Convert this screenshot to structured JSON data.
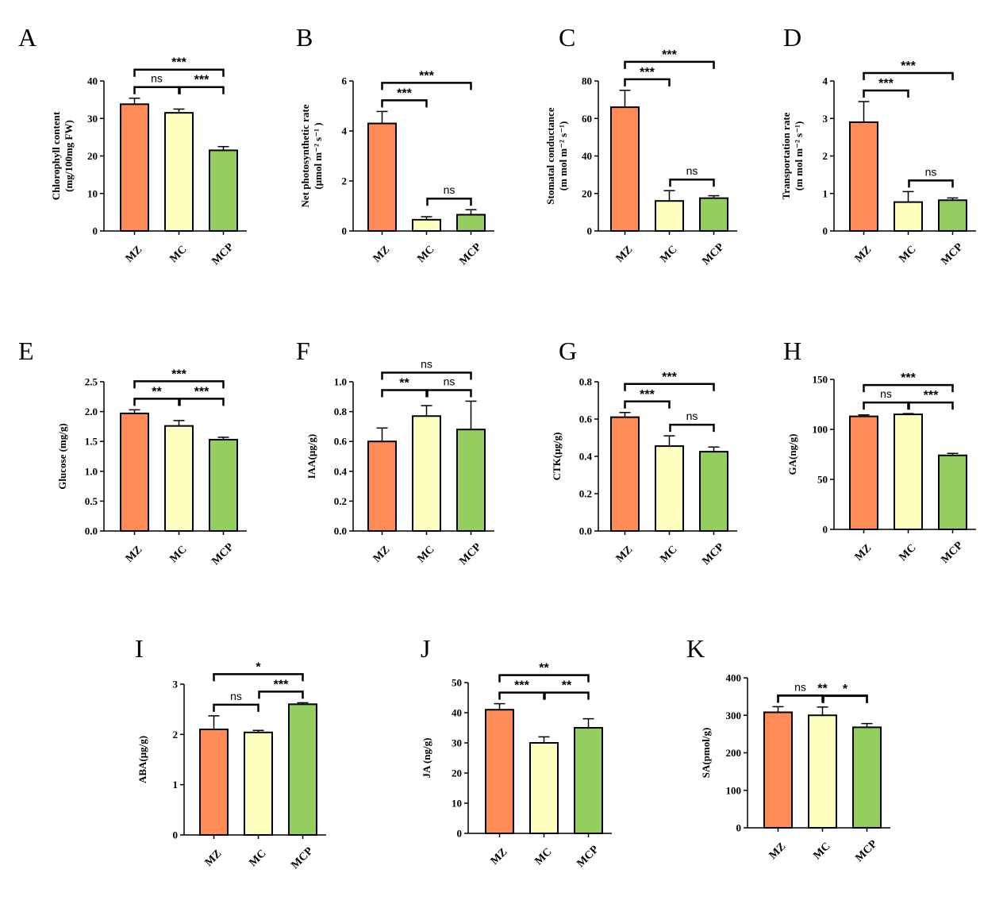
{
  "chart_data": [
    {
      "panel": "A",
      "type": "bar",
      "ylabel_lines": [
        "Chlorophyll content",
        "(mg/100mg  FW)"
      ],
      "categories": [
        "MZ",
        "MC",
        "MCP"
      ],
      "values": [
        33.8,
        31.5,
        21.5
      ],
      "errors": [
        1.6,
        1.0,
        1.0
      ],
      "ylim": [
        0,
        40
      ],
      "yticks": [
        0,
        10,
        20,
        30,
        40
      ],
      "comparisons": [
        {
          "from": 0,
          "to": 1,
          "label": "ns",
          "level": 1
        },
        {
          "from": 1,
          "to": 2,
          "label": "***",
          "level": 1
        },
        {
          "from": 0,
          "to": 2,
          "label": "***",
          "level": 2
        }
      ]
    },
    {
      "panel": "B",
      "type": "bar",
      "ylabel_lines": [
        "Net photosynthetic rate",
        "(μmol m⁻² s⁻¹ )"
      ],
      "categories": [
        "MZ",
        "MC",
        "MCP"
      ],
      "values": [
        4.3,
        0.45,
        0.65
      ],
      "errors": [
        0.48,
        0.12,
        0.2
      ],
      "ylim": [
        0,
        6
      ],
      "yticks": [
        0,
        2,
        4,
        6
      ],
      "comparisons": [
        {
          "from": 1,
          "to": 2,
          "label": "ns",
          "level": 0
        },
        {
          "from": 0,
          "to": 1,
          "label": "***",
          "level": 1
        },
        {
          "from": 0,
          "to": 2,
          "label": "***",
          "level": 2
        }
      ]
    },
    {
      "panel": "C",
      "type": "bar",
      "ylabel_lines": [
        "Stomatal conductance",
        "(m mol m⁻² s⁻¹)"
      ],
      "categories": [
        "MZ",
        "MC",
        "MCP"
      ],
      "values": [
        66,
        16,
        17.5
      ],
      "errors": [
        9,
        5.5,
        1.3
      ],
      "ylim": [
        0,
        80
      ],
      "yticks": [
        0,
        20,
        40,
        60,
        80
      ],
      "comparisons": [
        {
          "from": 1,
          "to": 2,
          "label": "ns",
          "level": 0
        },
        {
          "from": 0,
          "to": 1,
          "label": "***",
          "level": 1
        },
        {
          "from": 0,
          "to": 2,
          "label": "***",
          "level": 2
        }
      ]
    },
    {
      "panel": "D",
      "type": "bar",
      "ylabel_lines": [
        "Transportation rate",
        "(m mol m⁻² s⁻¹)"
      ],
      "categories": [
        "MZ",
        "MC",
        "MCP"
      ],
      "values": [
        2.9,
        0.77,
        0.82
      ],
      "errors": [
        0.55,
        0.28,
        0.06
      ],
      "ylim": [
        0,
        4
      ],
      "yticks": [
        0,
        1,
        2,
        3,
        4
      ],
      "comparisons": [
        {
          "from": 1,
          "to": 2,
          "label": "ns",
          "level": 0
        },
        {
          "from": 0,
          "to": 1,
          "label": "***",
          "level": 1
        },
        {
          "from": 0,
          "to": 2,
          "label": "***",
          "level": 2
        }
      ]
    },
    {
      "panel": "E",
      "type": "bar",
      "ylabel_lines": [
        "Glucose (mg/g)"
      ],
      "categories": [
        "MZ",
        "MC",
        "MCP"
      ],
      "values": [
        1.97,
        1.76,
        1.53
      ],
      "errors": [
        0.06,
        0.09,
        0.04
      ],
      "ylim": [
        0,
        2.5
      ],
      "yticks": [
        0.0,
        0.5,
        1.0,
        1.5,
        2.0,
        2.5
      ],
      "ytick_decimals": 1,
      "comparisons": [
        {
          "from": 0,
          "to": 1,
          "label": "**",
          "level": 1
        },
        {
          "from": 1,
          "to": 2,
          "label": "***",
          "level": 1
        },
        {
          "from": 0,
          "to": 2,
          "label": "***",
          "level": 2
        }
      ]
    },
    {
      "panel": "F",
      "type": "bar",
      "ylabel_lines": [
        "IAA(μg/g)"
      ],
      "categories": [
        "MZ",
        "MC",
        "MCP"
      ],
      "values": [
        0.6,
        0.77,
        0.68
      ],
      "errors": [
        0.09,
        0.07,
        0.19
      ],
      "ylim": [
        0,
        1.0
      ],
      "yticks": [
        0.0,
        0.2,
        0.4,
        0.6,
        0.8,
        1.0
      ],
      "ytick_decimals": 1,
      "comparisons": [
        {
          "from": 0,
          "to": 1,
          "label": "**",
          "level": 1
        },
        {
          "from": 1,
          "to": 2,
          "label": "ns",
          "level": 1
        },
        {
          "from": 0,
          "to": 2,
          "label": "ns",
          "level": 2
        }
      ]
    },
    {
      "panel": "G",
      "type": "bar",
      "ylabel_lines": [
        "CTK(μg/g)"
      ],
      "categories": [
        "MZ",
        "MC",
        "MCP"
      ],
      "values": [
        0.61,
        0.455,
        0.425
      ],
      "errors": [
        0.025,
        0.055,
        0.025
      ],
      "ylim": [
        0,
        0.8
      ],
      "yticks": [
        0.0,
        0.2,
        0.4,
        0.6,
        0.8
      ],
      "ytick_decimals": 1,
      "comparisons": [
        {
          "from": 1,
          "to": 2,
          "label": "ns",
          "level": 0
        },
        {
          "from": 0,
          "to": 1,
          "label": "***",
          "level": 1
        },
        {
          "from": 0,
          "to": 2,
          "label": "***",
          "level": 2
        }
      ]
    },
    {
      "panel": "H",
      "type": "bar",
      "ylabel_lines": [
        "GA(ng/g)"
      ],
      "categories": [
        "MZ",
        "MC",
        "MCP"
      ],
      "values": [
        113,
        115,
        74
      ],
      "errors": [
        1.5,
        0.8,
        2
      ],
      "ylim": [
        0,
        150
      ],
      "yticks": [
        0,
        50,
        100,
        150
      ],
      "comparisons": [
        {
          "from": 0,
          "to": 1,
          "label": "ns",
          "level": 1
        },
        {
          "from": 1,
          "to": 2,
          "label": "***",
          "level": 1
        },
        {
          "from": 0,
          "to": 2,
          "label": "***",
          "level": 2
        }
      ]
    },
    {
      "panel": "I",
      "type": "bar",
      "ylabel_lines": [
        "ABA(μg/g)"
      ],
      "categories": [
        "MZ",
        "MC",
        "MCP"
      ],
      "values": [
        2.1,
        2.04,
        2.6
      ],
      "errors": [
        0.27,
        0.04,
        0.03
      ],
      "ylim": [
        0,
        3
      ],
      "yticks": [
        0,
        1,
        2,
        3
      ],
      "comparisons": [
        {
          "from": 0,
          "to": 1,
          "label": "ns",
          "level": 0
        },
        {
          "from": 1,
          "to": 2,
          "label": "***",
          "level": 1
        },
        {
          "from": 0,
          "to": 2,
          "label": "*",
          "level": 2
        }
      ]
    },
    {
      "panel": "J",
      "type": "bar",
      "ylabel_lines": [
        "JA (ng/g)"
      ],
      "categories": [
        "MZ",
        "MC",
        "MCP"
      ],
      "values": [
        41,
        30,
        35
      ],
      "errors": [
        2,
        2,
        3
      ],
      "ylim": [
        0,
        50
      ],
      "yticks": [
        0,
        10,
        20,
        30,
        40,
        50
      ],
      "comparisons": [
        {
          "from": 0,
          "to": 1,
          "label": "***",
          "level": 1
        },
        {
          "from": 1,
          "to": 2,
          "label": "**",
          "level": 1
        },
        {
          "from": 0,
          "to": 2,
          "label": "**",
          "level": 2
        }
      ]
    },
    {
      "panel": "K",
      "type": "bar",
      "ylabel_lines": [
        "SA(pmol/g)"
      ],
      "categories": [
        "MZ",
        "MC",
        "MCP"
      ],
      "values": [
        308,
        300,
        268
      ],
      "errors": [
        15,
        22,
        10
      ],
      "ylim": [
        0,
        400
      ],
      "yticks": [
        0,
        100,
        200,
        300,
        400
      ],
      "comparisons": [
        {
          "from": 0,
          "to": 1,
          "label": "ns",
          "level": 0
        },
        {
          "from": 1,
          "to": 2,
          "label": "*",
          "level": 0
        },
        {
          "from": 0,
          "to": 2,
          "label": "**",
          "level": 1
        }
      ]
    }
  ],
  "colors": {
    "MZ": "#FF8C56",
    "MC": "#FFFFC0",
    "MCP": "#93CE5F",
    "stroke": "#000000"
  }
}
